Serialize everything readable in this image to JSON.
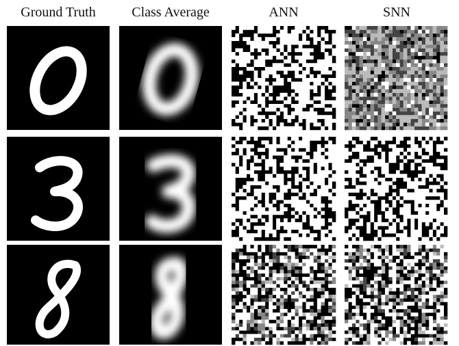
{
  "columns": [
    "Ground Truth",
    "Class Average",
    "ANN",
    "SNN"
  ]
}
